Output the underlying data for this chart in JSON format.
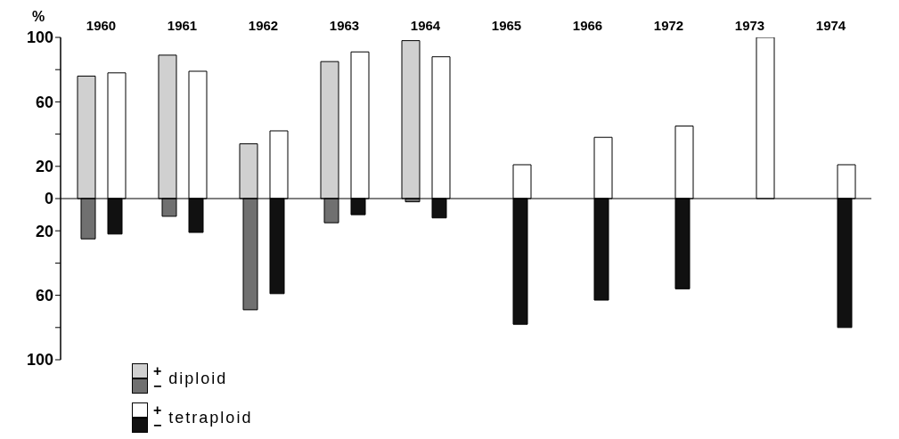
{
  "chart_data": {
    "type": "bar",
    "ylabel": "%",
    "categories": [
      "1960",
      "1961",
      "1962",
      "1963",
      "1964",
      "1965",
      "1966",
      "1972",
      "1973",
      "1974"
    ],
    "series": [
      {
        "name": "+",
        "color": "#d0d0d0",
        "values": [
          76,
          89,
          34,
          85,
          98,
          null,
          null,
          null,
          null,
          null
        ]
      },
      {
        "name": "−",
        "color": "#707070",
        "values": [
          -25,
          -11,
          -69,
          -15,
          -2,
          null,
          null,
          null,
          null,
          null
        ]
      },
      {
        "name": "+",
        "color": "#ffffff",
        "values": [
          78,
          79,
          42,
          91,
          88,
          21,
          38,
          45,
          100,
          21
        ]
      },
      {
        "name": "−",
        "color": "#111111",
        "values": [
          -22,
          -21,
          -59,
          -10,
          -12,
          -78,
          -63,
          -56,
          null,
          -80
        ]
      }
    ],
    "annotations": [
      "diploid",
      "tetraploid"
    ],
    "ylim": [
      -100,
      100
    ],
    "yticks": [
      100,
      {
        "value": 80,
        "label": null
      },
      60,
      {
        "value": 40,
        "label": null
      },
      20,
      0,
      {
        "value": -20,
        "label": "20"
      },
      {
        "value": -40,
        "label": null
      },
      {
        "value": -60,
        "label": "60"
      },
      {
        "value": -80,
        "label": null
      },
      {
        "value": -100,
        "label": "100"
      }
    ],
    "ref_lines": [
      {
        "axis": "y",
        "value": 0
      }
    ],
    "grid": false,
    "legend": "bottom left"
  }
}
